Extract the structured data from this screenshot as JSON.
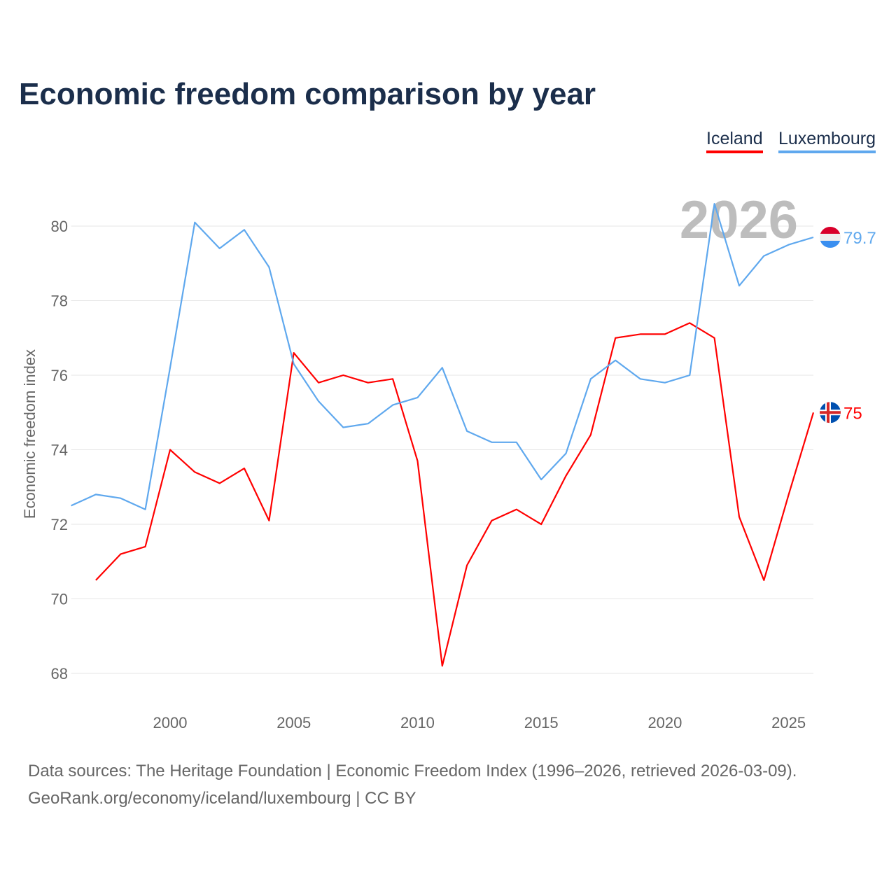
{
  "chart_data": {
    "type": "line",
    "title": "Economic freedom comparison by year",
    "xlabel": "",
    "ylabel": "Economic freedom index",
    "xlim": [
      1996,
      2026
    ],
    "ylim": [
      67,
      81.5
    ],
    "xticks": [
      2000,
      2005,
      2010,
      2015,
      2020,
      2025
    ],
    "yticks": [
      68,
      70,
      72,
      74,
      76,
      78,
      80
    ],
    "grid": true,
    "legend_position": "top-right",
    "year_watermark": "2026",
    "series": [
      {
        "name": "Iceland",
        "color": "#ff0000",
        "end_label": "75",
        "x": [
          1997,
          1998,
          1999,
          2000,
          2001,
          2002,
          2003,
          2004,
          2005,
          2006,
          2007,
          2008,
          2009,
          2010,
          2011,
          2012,
          2013,
          2014,
          2015,
          2016,
          2017,
          2018,
          2019,
          2020,
          2021,
          2022,
          2023,
          2024,
          2025,
          2026
        ],
        "values": [
          70.5,
          71.2,
          71.4,
          74.0,
          73.4,
          73.1,
          73.5,
          72.1,
          76.6,
          75.8,
          76.0,
          75.8,
          75.9,
          73.7,
          68.2,
          70.9,
          72.1,
          72.4,
          72.0,
          73.3,
          74.4,
          77.0,
          77.1,
          77.1,
          77.4,
          77.0,
          72.2,
          70.5,
          72.8,
          75.0
        ]
      },
      {
        "name": "Luxembourg",
        "color": "#5fa8ee",
        "end_label": "79.7",
        "x": [
          1996,
          1997,
          1998,
          1999,
          2000,
          2001,
          2002,
          2003,
          2004,
          2005,
          2006,
          2007,
          2008,
          2009,
          2010,
          2011,
          2012,
          2013,
          2014,
          2015,
          2016,
          2017,
          2018,
          2019,
          2020,
          2021,
          2022,
          2023,
          2024,
          2025,
          2026
        ],
        "values": [
          72.5,
          72.8,
          72.7,
          72.4,
          76.2,
          80.1,
          79.4,
          79.9,
          78.9,
          76.3,
          75.3,
          74.6,
          74.7,
          75.2,
          75.4,
          76.2,
          74.5,
          74.2,
          74.2,
          73.2,
          73.9,
          75.9,
          76.4,
          75.9,
          75.8,
          76.0,
          80.6,
          78.4,
          79.2,
          79.5,
          79.7
        ]
      }
    ]
  },
  "footer": {
    "line1": "Data sources: The Heritage Foundation | Economic Freedom Index (1996–2026, retrieved 2026-03-09).",
    "line2": "GeoRank.org/economy/iceland/luxembourg | CC BY"
  }
}
